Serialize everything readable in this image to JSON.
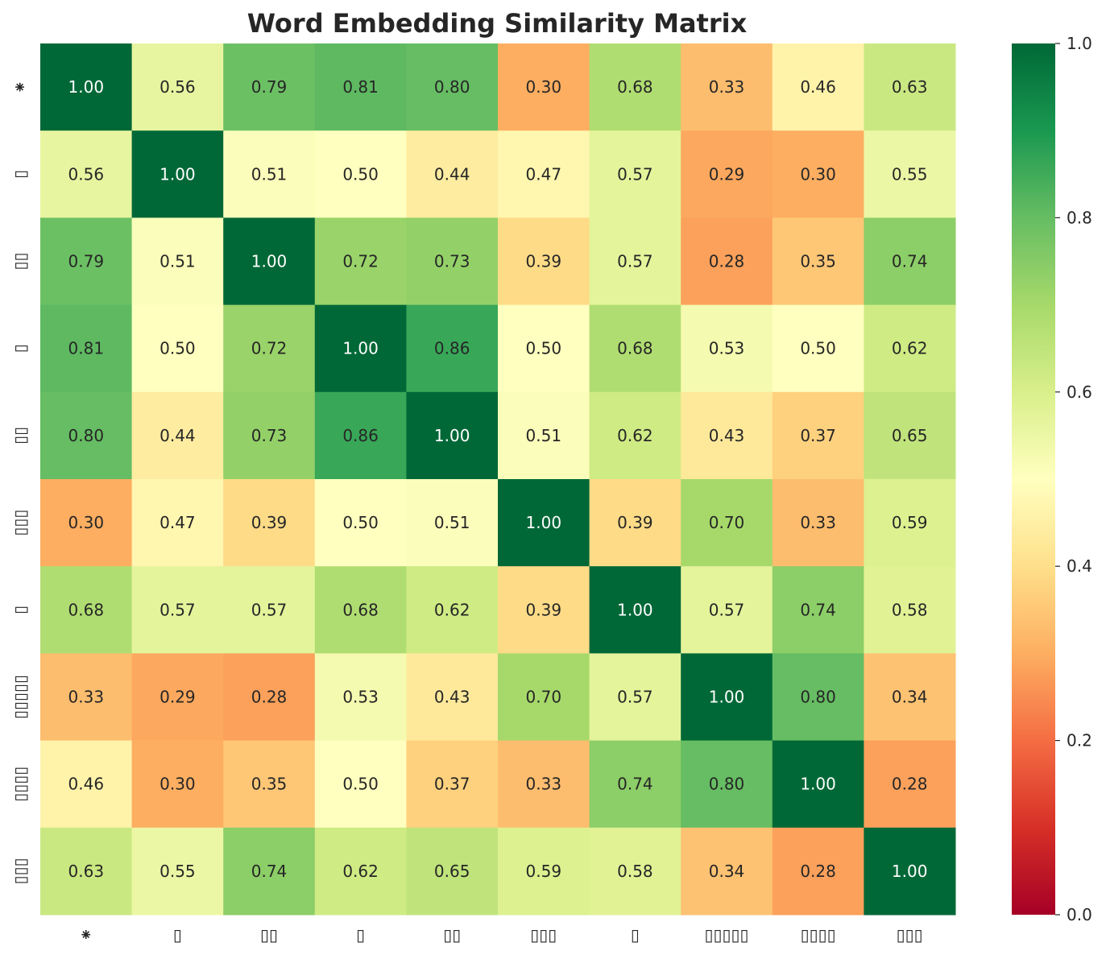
{
  "chart_data": {
    "type": "heatmap",
    "title": "Word Embedding Similarity Matrix",
    "xlabel": "",
    "ylabel": "",
    "labels": [
      "⁕",
      "▯",
      "▯▯",
      "▯",
      "▯▯",
      "▯▯▯",
      "▯",
      "▯▯▯▯▯",
      "▯▯▯▯",
      "▯▯▯"
    ],
    "matrix": [
      [
        1.0,
        0.56,
        0.79,
        0.81,
        0.8,
        0.3,
        0.68,
        0.33,
        0.46,
        0.63
      ],
      [
        0.56,
        1.0,
        0.51,
        0.5,
        0.44,
        0.47,
        0.57,
        0.29,
        0.3,
        0.55
      ],
      [
        0.79,
        0.51,
        1.0,
        0.72,
        0.73,
        0.39,
        0.57,
        0.28,
        0.35,
        0.74
      ],
      [
        0.81,
        0.5,
        0.72,
        1.0,
        0.86,
        0.5,
        0.68,
        0.53,
        0.5,
        0.62
      ],
      [
        0.8,
        0.44,
        0.73,
        0.86,
        1.0,
        0.51,
        0.62,
        0.43,
        0.37,
        0.65
      ],
      [
        0.3,
        0.47,
        0.39,
        0.5,
        0.51,
        1.0,
        0.39,
        0.7,
        0.33,
        0.59
      ],
      [
        0.68,
        0.57,
        0.57,
        0.68,
        0.62,
        0.39,
        1.0,
        0.57,
        0.74,
        0.58
      ],
      [
        0.33,
        0.29,
        0.28,
        0.53,
        0.43,
        0.7,
        0.57,
        1.0,
        0.8,
        0.34
      ],
      [
        0.46,
        0.3,
        0.35,
        0.5,
        0.37,
        0.33,
        0.74,
        0.8,
        1.0,
        0.28
      ],
      [
        0.63,
        0.55,
        0.74,
        0.62,
        0.65,
        0.59,
        0.58,
        0.34,
        0.28,
        1.0
      ]
    ],
    "value_format": "0.00",
    "colormap": "RdYlGn",
    "colorbar": {
      "range": [
        0.0,
        1.0
      ],
      "ticks": [
        "0.0",
        "0.2",
        "0.4",
        "0.6",
        "0.8",
        "1.0"
      ],
      "position": "right"
    },
    "grid": false,
    "annotation_colors": {
      "dark_cell": "#ffffff",
      "light_cell": "#262626"
    }
  }
}
